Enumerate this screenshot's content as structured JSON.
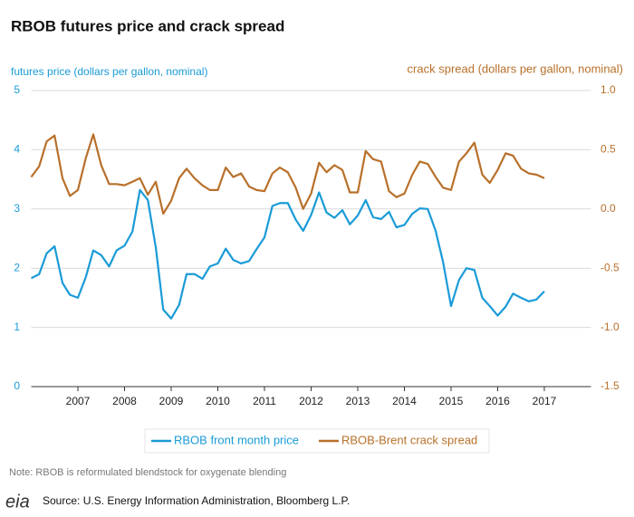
{
  "chart_data": {
    "type": "line",
    "title": "RBOB futures price and crack spread",
    "y_label": "futures price (dollars per gallon, nominal)",
    "y2_label": "crack spread (dollars per gallon, nominal)",
    "x": [
      2006.0,
      2006.17,
      2006.33,
      2006.5,
      2006.67,
      2006.83,
      2007.0,
      2007.17,
      2007.33,
      2007.5,
      2007.67,
      2007.83,
      2008.0,
      2008.17,
      2008.33,
      2008.5,
      2008.67,
      2008.83,
      2009.0,
      2009.17,
      2009.33,
      2009.5,
      2009.67,
      2009.83,
      2010.0,
      2010.17,
      2010.33,
      2010.5,
      2010.67,
      2010.83,
      2011.0,
      2011.17,
      2011.33,
      2011.5,
      2011.67,
      2011.83,
      2012.0,
      2012.17,
      2012.33,
      2012.5,
      2012.67,
      2012.83,
      2013.0,
      2013.17,
      2013.33,
      2013.5,
      2013.67,
      2013.83,
      2014.0,
      2014.17,
      2014.33,
      2014.5,
      2014.67,
      2014.83,
      2015.0,
      2015.17,
      2015.33,
      2015.5,
      2015.67,
      2015.83,
      2016.0,
      2016.17,
      2016.33,
      2016.5,
      2016.67,
      2016.83,
      2017.0
    ],
    "series": [
      {
        "name": "RBOB front month price",
        "color": "#1a9bd7",
        "values": [
          1.83,
          1.9,
          2.25,
          2.37,
          1.75,
          1.55,
          1.5,
          1.85,
          2.3,
          2.22,
          2.03,
          2.3,
          2.38,
          2.62,
          3.32,
          3.15,
          2.35,
          1.3,
          1.15,
          1.38,
          1.9,
          1.9,
          1.82,
          2.03,
          2.08,
          2.33,
          2.14,
          2.08,
          2.12,
          2.32,
          2.52,
          3.05,
          3.1,
          3.1,
          2.82,
          2.63,
          2.9,
          3.28,
          2.94,
          2.85,
          2.98,
          2.74,
          2.89,
          3.15,
          2.86,
          2.83,
          2.95,
          2.69,
          2.73,
          2.92,
          3.01,
          3.0,
          2.63,
          2.1,
          1.36,
          1.8,
          2.0,
          1.97,
          1.5,
          1.36,
          1.2,
          1.35,
          1.57,
          1.5,
          1.44,
          1.47,
          1.61
        ]
      },
      {
        "name": "RBOB-Brent crack spread",
        "color": "#b8702a",
        "axis": "y2",
        "values": [
          0.27,
          0.36,
          0.57,
          0.62,
          0.26,
          0.11,
          0.16,
          0.43,
          0.63,
          0.37,
          0.21,
          0.21,
          0.2,
          0.23,
          0.26,
          0.12,
          0.23,
          -0.04,
          0.07,
          0.26,
          0.34,
          0.26,
          0.2,
          0.16,
          0.16,
          0.35,
          0.27,
          0.3,
          0.19,
          0.16,
          0.15,
          0.3,
          0.35,
          0.31,
          0.18,
          0.0,
          0.13,
          0.39,
          0.31,
          0.37,
          0.33,
          0.14,
          0.14,
          0.49,
          0.42,
          0.4,
          0.15,
          0.1,
          0.13,
          0.29,
          0.4,
          0.38,
          0.27,
          0.18,
          0.16,
          0.4,
          0.47,
          0.56,
          0.29,
          0.22,
          0.33,
          0.47,
          0.45,
          0.34,
          0.3,
          0.29,
          0.26
        ]
      }
    ],
    "xlim": [
      2006,
      2018
    ],
    "xticks": [
      2007,
      2008,
      2009,
      2010,
      2011,
      2012,
      2013,
      2014,
      2015,
      2016,
      2017
    ],
    "ylim": [
      0,
      5
    ],
    "yticks": [
      0,
      1,
      2,
      3,
      4,
      5
    ],
    "y2lim": [
      -1.5,
      1.0
    ],
    "y2ticks": [
      {
        "value": 1.0,
        "label": "1.0"
      },
      {
        "value": 0.5,
        "label": "0.5"
      },
      {
        "value": 0.0,
        "label": "0.0"
      },
      {
        "value": -0.5,
        "label": "-0.5"
      },
      {
        "value": -1.0,
        "label": "-1.0"
      },
      {
        "value": -1.5,
        "label": "-1.5"
      }
    ],
    "grid": true
  },
  "note": "Note: RBOB is reformulated blendstock for oxygenate blending",
  "logo": "eia",
  "source": "Source: U.S. Energy Information Administration, Bloomberg L.P."
}
